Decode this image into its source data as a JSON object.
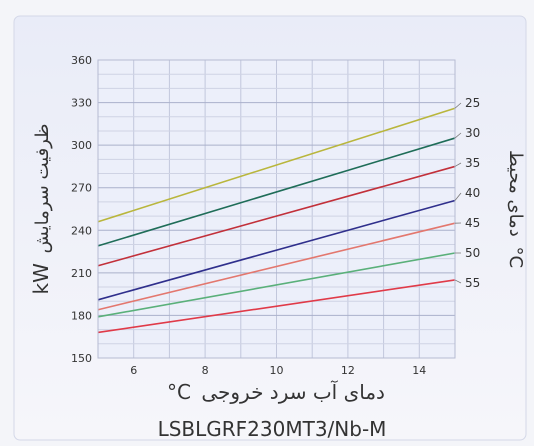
{
  "chart_data": {
    "type": "line",
    "ylabel": "ظرفیت سرمایش",
    "ylabel_unit": "kW",
    "xlabel": "دمای آب سرد خروجی",
    "xlabel_unit": "°C",
    "legend_title": "دمای محیط",
    "legend_unit": "°C",
    "legend_placement": "right",
    "model": "LSBLGRF230MT3/Nb-M",
    "xlim": [
      5,
      15
    ],
    "ylim": [
      150,
      360
    ],
    "xticks": [
      "6",
      "8",
      "10",
      "12",
      "14"
    ],
    "yticks": [
      "150",
      "180",
      "210",
      "240",
      "270",
      "300",
      "330",
      "360"
    ],
    "grid": true,
    "series": [
      {
        "name": "25",
        "color": "#b9b63c",
        "x": [
          5,
          15
        ],
        "y": [
          246,
          326
        ]
      },
      {
        "name": "30",
        "color": "#1f6d58",
        "x": [
          5,
          15
        ],
        "y": [
          229,
          305
        ]
      },
      {
        "name": "35",
        "color": "#c2303a",
        "x": [
          5,
          15
        ],
        "y": [
          215,
          285
        ]
      },
      {
        "name": "40",
        "color": "#2f2f8c",
        "x": [
          5,
          15
        ],
        "y": [
          191,
          261
        ]
      },
      {
        "name": "45",
        "color": "#e3776e",
        "x": [
          5,
          15
        ],
        "y": [
          184,
          245
        ]
      },
      {
        "name": "50",
        "color": "#5ab07a",
        "x": [
          5,
          15
        ],
        "y": [
          179,
          224
        ]
      },
      {
        "name": "55",
        "color": "#e03a48",
        "x": [
          5,
          15
        ],
        "y": [
          168,
          205
        ]
      }
    ]
  }
}
